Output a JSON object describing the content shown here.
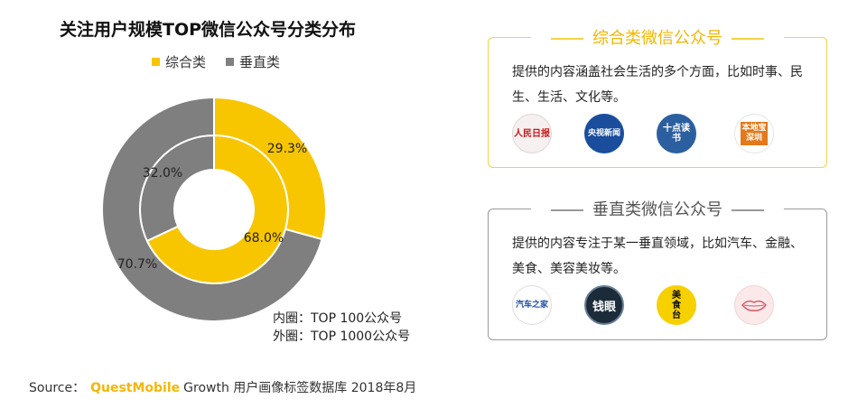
{
  "chart_data": {
    "type": "donut",
    "title": "关注用户规模TOP微信公众号分类分布",
    "legend_position": "top",
    "series_names": [
      "综合类",
      "垂直类"
    ],
    "colors": {
      "综合类": "#f7c600",
      "垂直类": "#7f7f7f"
    },
    "rings": [
      {
        "ring": "inner",
        "values": [
          {
            "name": "综合类",
            "value": 68.0,
            "label": "68.0%"
          },
          {
            "name": "垂直类",
            "value": 32.0,
            "label": "32.0%"
          }
        ]
      },
      {
        "ring": "outer",
        "values": [
          {
            "name": "综合类",
            "value": 29.3,
            "label": "29.3%"
          },
          {
            "name": "垂直类",
            "value": 70.7,
            "label": "70.7%"
          }
        ]
      }
    ],
    "notes": [
      "内圈：TOP 100公众号",
      "外圈：TOP 1000公众号"
    ]
  },
  "source": {
    "prefix": "Source：",
    "brand": "QuestMobile",
    "rest": "Growth 用户画像标签数据库 2018年8月"
  },
  "cards": {
    "comprehensive": {
      "title": "综合类微信公众号",
      "desc": "提供的内容涵盖社会生活的多个方面，比如时事、民生、生活、文化等。",
      "logos": [
        {
          "text": "人民日报",
          "icon": "renmin-ribao-logo"
        },
        {
          "text": "央视新闻",
          "icon": "cctv-news-logo"
        },
        {
          "text": "十点读书",
          "icon": "shidian-dushu-logo"
        },
        {
          "text": "本地宝 深圳",
          "icon": "bendibao-shenzhen-logo"
        }
      ]
    },
    "vertical": {
      "title": "垂直类微信公众号",
      "desc": "提供的内容专注于某一垂直领域，比如汽车、金融、美食、美容美妆等。",
      "logos": [
        {
          "text": "汽车之家",
          "icon": "autohome-logo"
        },
        {
          "text": "钱眼",
          "icon": "qianyan-logo"
        },
        {
          "text": "美食台",
          "icon": "meishitai-logo"
        },
        {
          "text": "",
          "icon": "lips-logo"
        }
      ]
    }
  }
}
